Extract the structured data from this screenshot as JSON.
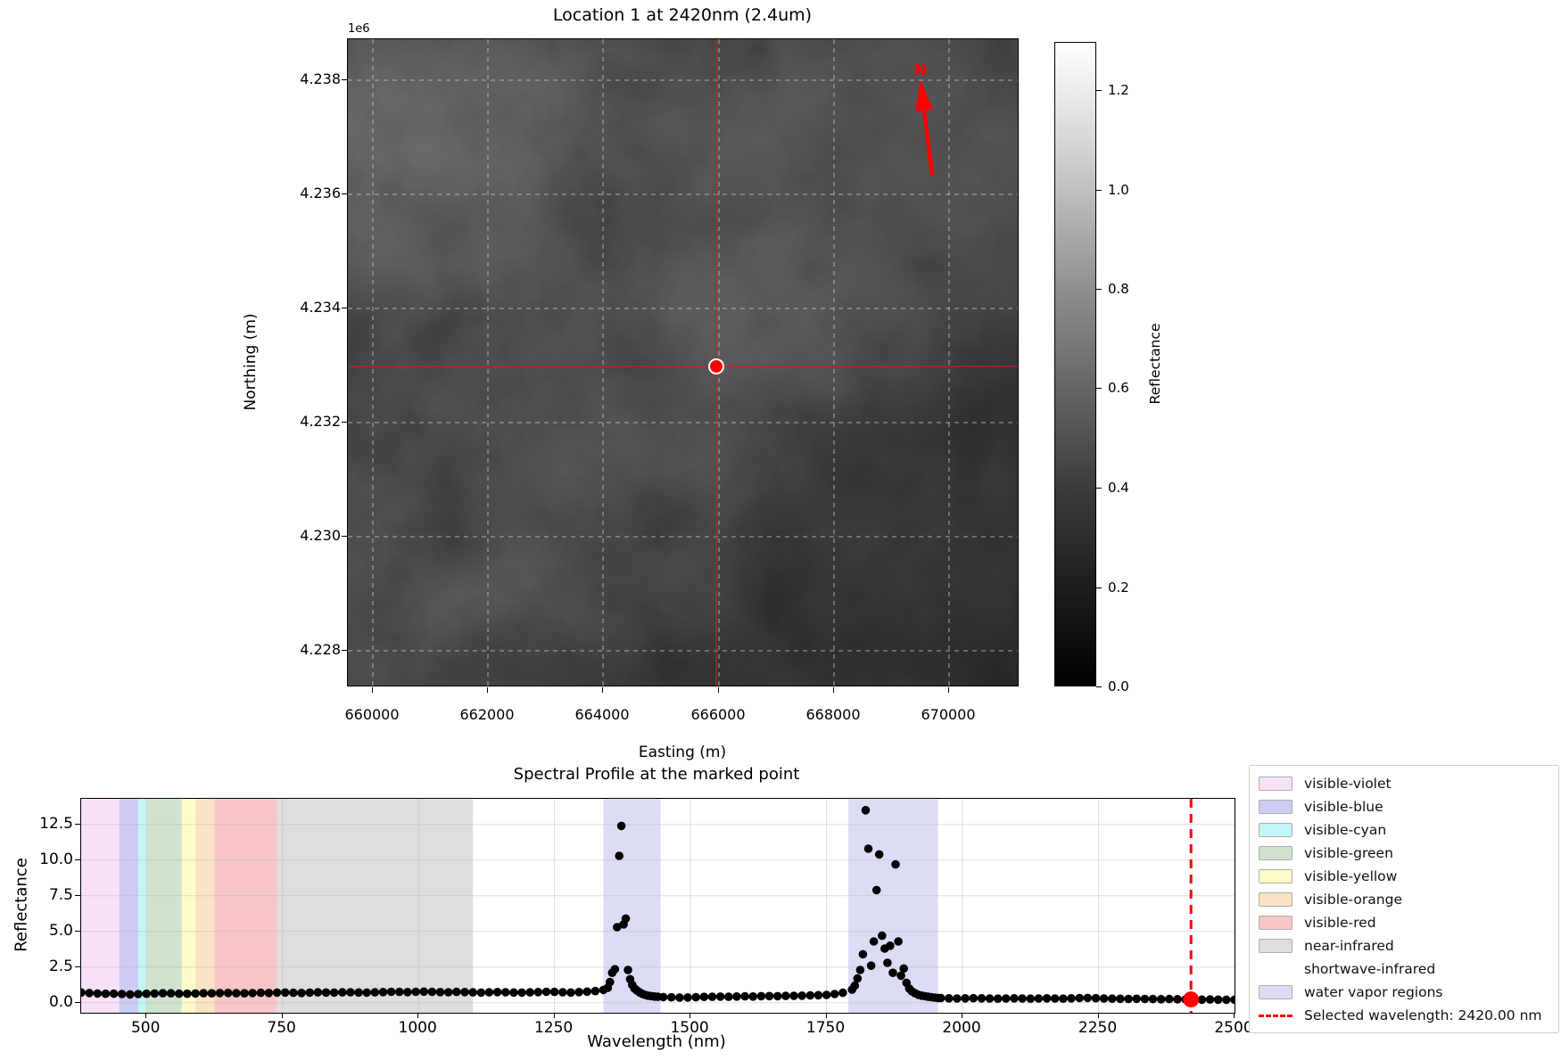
{
  "figure": {
    "background": "#ffffff"
  },
  "map_panel": {
    "title": "Location 1 at 2420nm (2.4um)",
    "axis_offset_label": "1e6",
    "xlabel": "Easting (m)",
    "ylabel": "Northing (m)",
    "x_ticks": [
      "660000",
      "662000",
      "664000",
      "666000",
      "668000",
      "670000"
    ],
    "y_ticks": [
      "4.238",
      "4.236",
      "4.234",
      "4.232",
      "4.230",
      "4.228"
    ],
    "north_arrow_label": "N",
    "marked_point": {
      "easting": 665950,
      "northing": 4233000
    },
    "crosshair_color": "#cc2222",
    "marker_color": "#ff0000"
  },
  "colorbar": {
    "label": "Reflectance",
    "ticks": [
      "0.0",
      "0.2",
      "0.4",
      "0.6",
      "0.8",
      "1.0",
      "1.2"
    ],
    "vmin": 0.0,
    "vmax": 1.3
  },
  "spectral_panel": {
    "title": "Spectral Profile at the marked point",
    "xlabel": "Wavelength (nm)",
    "ylabel": "Reflectance",
    "x_ticks": [
      "500",
      "750",
      "1000",
      "1250",
      "1500",
      "1750",
      "2000",
      "2250",
      "2500"
    ],
    "x_tick_values": [
      500,
      750,
      1000,
      1250,
      1500,
      1750,
      2000,
      2250,
      2500
    ],
    "y_ticks": [
      "0.0",
      "2.5",
      "5.0",
      "7.5",
      "10.0",
      "12.5"
    ],
    "y_tick_values": [
      0.0,
      2.5,
      5.0,
      7.5,
      10.0,
      12.5
    ]
  },
  "chart_data": {
    "type": "scatter",
    "title": "Spectral Profile at the marked point",
    "xlabel": "Wavelength (nm)",
    "ylabel": "Reflectance",
    "xlim": [
      380,
      2500
    ],
    "ylim": [
      -0.7,
      14.3
    ],
    "grid": true,
    "marker_color": "#000000",
    "bands": [
      {
        "name": "visible-violet",
        "range": [
          380,
          450
        ],
        "color": "#f8e1f8"
      },
      {
        "name": "visible-blue",
        "range": [
          450,
          485
        ],
        "color": "#ccccf5"
      },
      {
        "name": "visible-cyan",
        "range": [
          485,
          500
        ],
        "color": "#c2f7f7"
      },
      {
        "name": "visible-green",
        "range": [
          500,
          565
        ],
        "color": "#cfe3cf"
      },
      {
        "name": "visible-yellow",
        "range": [
          565,
          590
        ],
        "color": "#fcfcc8"
      },
      {
        "name": "visible-orange",
        "range": [
          590,
          625
        ],
        "color": "#fae3c3"
      },
      {
        "name": "visible-red",
        "range": [
          625,
          740
        ],
        "color": "#f8c6c6"
      },
      {
        "name": "near-infrared",
        "range": [
          740,
          1100
        ],
        "color": "#dedede"
      },
      {
        "name": "shortwave-infrared",
        "range": [
          1100,
          2500
        ],
        "color": null
      },
      {
        "name": "water-vapor-region-1",
        "range": [
          1340,
          1445
        ],
        "color": "#dddcf7"
      },
      {
        "name": "water-vapor-region-2",
        "range": [
          1790,
          1955
        ],
        "color": "#dddcf7"
      }
    ],
    "selected_wavelength": 2420.0,
    "selected_point": {
      "x": 2420,
      "y": 0.23
    },
    "selected_line_color": "#ff0000",
    "points": [
      [
        380,
        0.72
      ],
      [
        395,
        0.68
      ],
      [
        410,
        0.65
      ],
      [
        425,
        0.63
      ],
      [
        440,
        0.64
      ],
      [
        455,
        0.61
      ],
      [
        470,
        0.59
      ],
      [
        485,
        0.61
      ],
      [
        500,
        0.63
      ],
      [
        515,
        0.65
      ],
      [
        530,
        0.67
      ],
      [
        545,
        0.66
      ],
      [
        560,
        0.64
      ],
      [
        575,
        0.63
      ],
      [
        590,
        0.65
      ],
      [
        605,
        0.67
      ],
      [
        620,
        0.66
      ],
      [
        635,
        0.68
      ],
      [
        650,
        0.69
      ],
      [
        665,
        0.67
      ],
      [
        680,
        0.66
      ],
      [
        695,
        0.68
      ],
      [
        710,
        0.7
      ],
      [
        725,
        0.69
      ],
      [
        740,
        0.71
      ],
      [
        755,
        0.72
      ],
      [
        770,
        0.7
      ],
      [
        785,
        0.69
      ],
      [
        800,
        0.71
      ],
      [
        815,
        0.73
      ],
      [
        830,
        0.72
      ],
      [
        845,
        0.71
      ],
      [
        860,
        0.73
      ],
      [
        875,
        0.74
      ],
      [
        890,
        0.72
      ],
      [
        905,
        0.71
      ],
      [
        920,
        0.73
      ],
      [
        935,
        0.75
      ],
      [
        950,
        0.77
      ],
      [
        965,
        0.76
      ],
      [
        980,
        0.75
      ],
      [
        995,
        0.77
      ],
      [
        1010,
        0.78
      ],
      [
        1025,
        0.76
      ],
      [
        1040,
        0.75
      ],
      [
        1055,
        0.74
      ],
      [
        1070,
        0.76
      ],
      [
        1085,
        0.75
      ],
      [
        1100,
        0.73
      ],
      [
        1115,
        0.71
      ],
      [
        1130,
        0.73
      ],
      [
        1145,
        0.75
      ],
      [
        1160,
        0.74
      ],
      [
        1175,
        0.72
      ],
      [
        1190,
        0.71
      ],
      [
        1205,
        0.73
      ],
      [
        1220,
        0.75
      ],
      [
        1235,
        0.77
      ],
      [
        1250,
        0.76
      ],
      [
        1265,
        0.74
      ],
      [
        1280,
        0.72
      ],
      [
        1295,
        0.75
      ],
      [
        1310,
        0.78
      ],
      [
        1325,
        0.82
      ],
      [
        1340,
        0.9
      ],
      [
        1348,
        1.05
      ],
      [
        1352,
        1.45
      ],
      [
        1356,
        2.1
      ],
      [
        1361,
        2.35
      ],
      [
        1365,
        5.3
      ],
      [
        1369,
        10.3
      ],
      [
        1373,
        12.4
      ],
      [
        1377,
        5.5
      ],
      [
        1381,
        5.9
      ],
      [
        1385,
        2.3
      ],
      [
        1389,
        1.65
      ],
      [
        1393,
        1.25
      ],
      [
        1397,
        1.0
      ],
      [
        1402,
        0.85
      ],
      [
        1407,
        0.72
      ],
      [
        1412,
        0.62
      ],
      [
        1417,
        0.55
      ],
      [
        1422,
        0.5
      ],
      [
        1428,
        0.47
      ],
      [
        1434,
        0.44
      ],
      [
        1440,
        0.42
      ],
      [
        1450,
        0.4
      ],
      [
        1465,
        0.38
      ],
      [
        1480,
        0.36
      ],
      [
        1495,
        0.37
      ],
      [
        1510,
        0.39
      ],
      [
        1525,
        0.41
      ],
      [
        1540,
        0.42
      ],
      [
        1555,
        0.43
      ],
      [
        1570,
        0.42
      ],
      [
        1585,
        0.44
      ],
      [
        1600,
        0.45
      ],
      [
        1615,
        0.44
      ],
      [
        1630,
        0.46
      ],
      [
        1645,
        0.47
      ],
      [
        1660,
        0.46
      ],
      [
        1675,
        0.48
      ],
      [
        1690,
        0.49
      ],
      [
        1705,
        0.5
      ],
      [
        1720,
        0.52
      ],
      [
        1735,
        0.53
      ],
      [
        1750,
        0.55
      ],
      [
        1765,
        0.61
      ],
      [
        1780,
        0.7
      ],
      [
        1797,
        0.92
      ],
      [
        1802,
        1.2
      ],
      [
        1807,
        1.7
      ],
      [
        1812,
        2.3
      ],
      [
        1817,
        3.4
      ],
      [
        1822,
        13.5
      ],
      [
        1827,
        10.8
      ],
      [
        1832,
        2.6
      ],
      [
        1837,
        4.3
      ],
      [
        1842,
        7.9
      ],
      [
        1847,
        10.4
      ],
      [
        1852,
        4.7
      ],
      [
        1857,
        3.8
      ],
      [
        1862,
        2.8
      ],
      [
        1867,
        4.0
      ],
      [
        1872,
        2.1
      ],
      [
        1877,
        9.7
      ],
      [
        1882,
        4.3
      ],
      [
        1887,
        1.9
      ],
      [
        1892,
        2.4
      ],
      [
        1897,
        1.4
      ],
      [
        1902,
        1.0
      ],
      [
        1907,
        0.8
      ],
      [
        1913,
        0.66
      ],
      [
        1919,
        0.56
      ],
      [
        1925,
        0.5
      ],
      [
        1931,
        0.46
      ],
      [
        1937,
        0.42
      ],
      [
        1943,
        0.39
      ],
      [
        1949,
        0.36
      ],
      [
        1955,
        0.34
      ],
      [
        1960,
        0.33
      ],
      [
        1975,
        0.31
      ],
      [
        1990,
        0.3
      ],
      [
        2005,
        0.31
      ],
      [
        2020,
        0.32
      ],
      [
        2035,
        0.31
      ],
      [
        2050,
        0.3
      ],
      [
        2065,
        0.29
      ],
      [
        2080,
        0.3
      ],
      [
        2095,
        0.31
      ],
      [
        2110,
        0.3
      ],
      [
        2125,
        0.29
      ],
      [
        2140,
        0.3
      ],
      [
        2155,
        0.31
      ],
      [
        2170,
        0.3
      ],
      [
        2185,
        0.29
      ],
      [
        2200,
        0.31
      ],
      [
        2215,
        0.33
      ],
      [
        2230,
        0.34
      ],
      [
        2245,
        0.32
      ],
      [
        2260,
        0.3
      ],
      [
        2275,
        0.29
      ],
      [
        2290,
        0.28
      ],
      [
        2305,
        0.27
      ],
      [
        2320,
        0.28
      ],
      [
        2335,
        0.27
      ],
      [
        2350,
        0.26
      ],
      [
        2365,
        0.25
      ],
      [
        2380,
        0.26
      ],
      [
        2395,
        0.25
      ],
      [
        2410,
        0.24
      ],
      [
        2425,
        0.23
      ],
      [
        2440,
        0.22
      ],
      [
        2455,
        0.23
      ],
      [
        2470,
        0.22
      ],
      [
        2485,
        0.21
      ],
      [
        2500,
        0.21
      ]
    ]
  },
  "legend": {
    "items": [
      {
        "label": "visible-violet",
        "swatch": "#f8e1f8",
        "type": "patch"
      },
      {
        "label": "visible-blue",
        "swatch": "#ccccf5",
        "type": "patch"
      },
      {
        "label": "visible-cyan",
        "swatch": "#c2f7f7",
        "type": "patch"
      },
      {
        "label": "visible-green",
        "swatch": "#cfe3cf",
        "type": "patch"
      },
      {
        "label": "visible-yellow",
        "swatch": "#fcfcc8",
        "type": "patch"
      },
      {
        "label": "visible-orange",
        "swatch": "#fae3c3",
        "type": "patch"
      },
      {
        "label": "visible-red",
        "swatch": "#f8c6c6",
        "type": "patch"
      },
      {
        "label": "near-infrared",
        "swatch": "#dedede",
        "type": "patch"
      },
      {
        "label": "shortwave-infrared",
        "swatch": null,
        "type": "patch"
      },
      {
        "label": "water vapor regions",
        "swatch": "#dddcf7",
        "type": "patch"
      },
      {
        "label": "Selected wavelength: 2420.00 nm",
        "swatch": "#ff0000",
        "type": "dashed-line"
      }
    ]
  }
}
